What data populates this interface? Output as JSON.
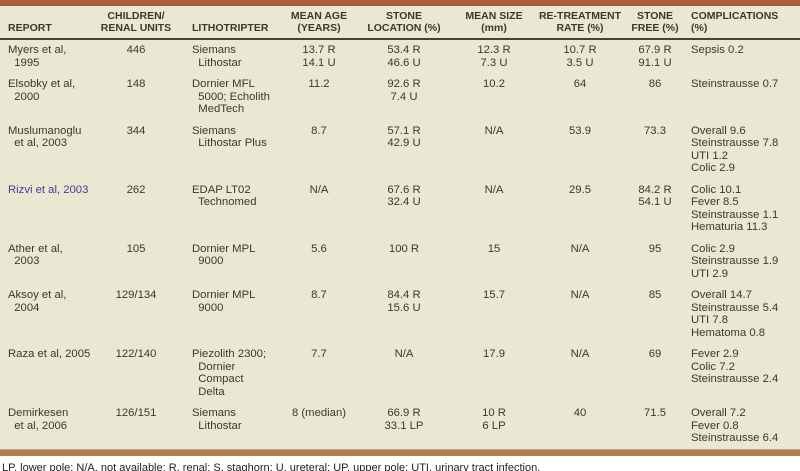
{
  "colors": {
    "top_rule": "#ad5d39",
    "bottom_rule": "#b37d4c",
    "table_background": "#eae7d3",
    "header_rule": "#45423a",
    "body_text": "#3c392c",
    "citation_link": "#403d9b"
  },
  "table": {
    "columns": [
      {
        "key": "report",
        "label": [
          "REPORT"
        ],
        "align": "left"
      },
      {
        "key": "children",
        "label": [
          "CHILDREN/",
          "RENAL UNITS"
        ],
        "align": "center"
      },
      {
        "key": "lithotripter",
        "label": [
          "LITHOTRIPTER"
        ],
        "align": "left"
      },
      {
        "key": "mean_age",
        "label": [
          "MEAN AGE",
          "(YEARS)"
        ],
        "align": "center"
      },
      {
        "key": "stone_location",
        "label": [
          "STONE",
          "LOCATION (%)"
        ],
        "align": "center"
      },
      {
        "key": "mean_size",
        "label": [
          "MEAN SIZE",
          "(mm)"
        ],
        "align": "center"
      },
      {
        "key": "retreatment",
        "label": [
          "RE-TREATMENT",
          "RATE (%)"
        ],
        "align": "center"
      },
      {
        "key": "stone_free",
        "label": [
          "STONE",
          "FREE (%)"
        ],
        "align": "center"
      },
      {
        "key": "complications",
        "label": [
          "COMPLICATIONS",
          "(%)"
        ],
        "align": "left"
      }
    ],
    "rows": [
      {
        "report": [
          "Myers et al,",
          "  1995"
        ],
        "children": [
          "446"
        ],
        "lithotripter": [
          "Siemans",
          "  Lithostar"
        ],
        "mean_age": [
          "13.7 R",
          "14.1 U"
        ],
        "stone_location": [
          "53.4 R",
          "46.6 U"
        ],
        "mean_size": [
          "12.3 R",
          "7.3 U"
        ],
        "retreatment": [
          "10.7 R",
          "3.5 U"
        ],
        "stone_free": [
          "67.9 R",
          "91.1 U"
        ],
        "complications": [
          "Sepsis 0.2"
        ]
      },
      {
        "report": [
          "Elsobky et al,",
          "  2000"
        ],
        "children": [
          "148"
        ],
        "lithotripter": [
          "Dornier MFL",
          "  5000; Echolith",
          "  MedTech"
        ],
        "mean_age": [
          "11.2"
        ],
        "stone_location": [
          "92.6 R",
          "7.4 U"
        ],
        "mean_size": [
          "10.2"
        ],
        "retreatment": [
          "64"
        ],
        "stone_free": [
          "86"
        ],
        "complications": [
          "Steinstrausse 0.7"
        ]
      },
      {
        "report": [
          "Muslumanoglu",
          "  et al, 2003"
        ],
        "children": [
          "344"
        ],
        "lithotripter": [
          "Siemans",
          "  Lithostar Plus"
        ],
        "mean_age": [
          "8.7"
        ],
        "stone_location": [
          "57.1 R",
          "42.9 U"
        ],
        "mean_size": [
          "N/A"
        ],
        "retreatment": [
          "53.9"
        ],
        "stone_free": [
          "73.3"
        ],
        "complications": [
          "Overall 9.6",
          "Steinstrausse 7.8",
          "UTI 1.2",
          "Colic 2.9"
        ]
      },
      {
        "report": [
          "Rizvi et al, 2003"
        ],
        "report_is_link": true,
        "children": [
          "262"
        ],
        "lithotripter": [
          "EDAP LT02",
          "  Technomed"
        ],
        "mean_age": [
          "N/A"
        ],
        "stone_location": [
          "67.6 R",
          "32.4 U"
        ],
        "mean_size": [
          "N/A"
        ],
        "retreatment": [
          "29.5"
        ],
        "stone_free": [
          "84.2 R",
          "54.1 U"
        ],
        "complications": [
          "Colic 10.1",
          "Fever 8.5",
          "Steinstrausse 1.1",
          "Hematuria 11.3"
        ]
      },
      {
        "report": [
          "Ather et al,",
          "  2003"
        ],
        "children": [
          "105"
        ],
        "lithotripter": [
          "Dornier MPL",
          "  9000"
        ],
        "mean_age": [
          "5.6"
        ],
        "stone_location": [
          "100 R"
        ],
        "mean_size": [
          "15"
        ],
        "retreatment": [
          "N/A"
        ],
        "stone_free": [
          "95"
        ],
        "complications": [
          "Colic 2.9",
          "Steinstrausse 1.9",
          "UTI 2.9"
        ]
      },
      {
        "report": [
          "Aksoy et al,",
          "  2004"
        ],
        "children": [
          "129/134"
        ],
        "lithotripter": [
          "Dornier MPL",
          "  9000"
        ],
        "mean_age": [
          "8.7"
        ],
        "stone_location": [
          "84.4 R",
          "15.6 U"
        ],
        "mean_size": [
          "15.7"
        ],
        "retreatment": [
          "N/A"
        ],
        "stone_free": [
          "85"
        ],
        "complications": [
          "Overall 14.7",
          "Steinstrausse 5.4",
          "UTI 7.8",
          "Hematoma 0.8"
        ]
      },
      {
        "report": [
          "Raza et al, 2005"
        ],
        "children": [
          "122/140"
        ],
        "lithotripter": [
          "Piezolith 2300;",
          "  Dornier",
          "  Compact",
          "  Delta"
        ],
        "mean_age": [
          "7.7"
        ],
        "stone_location": [
          "N/A"
        ],
        "mean_size": [
          "17.9"
        ],
        "retreatment": [
          "N/A"
        ],
        "stone_free": [
          "69"
        ],
        "complications": [
          "Fever 2.9",
          "Colic 7.2",
          "Steinstrausse 2.4"
        ]
      },
      {
        "report": [
          "Demirkesen",
          "  et al, 2006"
        ],
        "children": [
          "126/151"
        ],
        "lithotripter": [
          "Siemans",
          "  Lithostar"
        ],
        "mean_age": [
          "8 (median)"
        ],
        "stone_location": [
          "66.9 R",
          "33.1 LP"
        ],
        "mean_size": [
          "10 R",
          "6 LP"
        ],
        "retreatment": [
          "40"
        ],
        "stone_free": [
          "71.5"
        ],
        "complications": [
          "Overall 7.2",
          "Fever 0.8",
          "Steinstrausse 6.4"
        ]
      }
    ]
  },
  "footnote": "LP, lower pole; N/A, not available; R, renal; S, staghorn; U, ureteral; UP, upper pole; UTI, urinary tract infection."
}
